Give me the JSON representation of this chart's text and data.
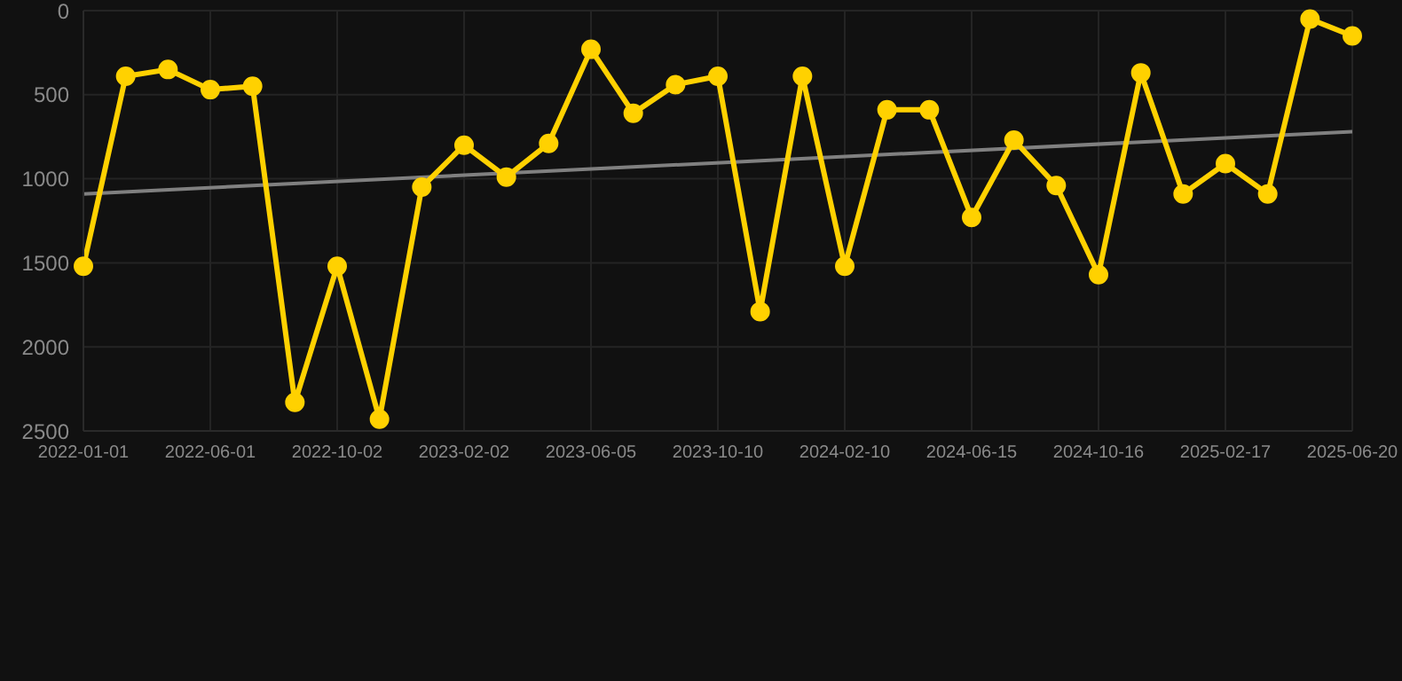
{
  "chart_data": {
    "type": "line",
    "categories": [
      "2022-01-01",
      null,
      null,
      "2022-06-01",
      null,
      null,
      "2022-10-02",
      null,
      null,
      "2023-02-02",
      null,
      null,
      "2023-06-05",
      null,
      null,
      "2023-10-10",
      null,
      null,
      "2024-02-10",
      null,
      null,
      "2024-06-15",
      null,
      null,
      "2024-10-16",
      null,
      null,
      "2025-02-17",
      null,
      null,
      "2025-06-20"
    ],
    "series": [
      {
        "color": "#ffd100",
        "marker": "circle",
        "values": [
          1520,
          390,
          350,
          470,
          450,
          2330,
          1520,
          2430,
          1050,
          800,
          990,
          790,
          230,
          610,
          440,
          390,
          1790,
          390,
          1520,
          590,
          590,
          1230,
          770,
          1040,
          1570,
          370,
          1090,
          910,
          1090,
          50,
          150
        ]
      },
      {
        "type": "line",
        "color": "#808080",
        "marker": "none",
        "values": [
          1090,
          null,
          null,
          null,
          null,
          null,
          null,
          null,
          null,
          null,
          null,
          null,
          null,
          null,
          null,
          null,
          null,
          null,
          null,
          null,
          null,
          null,
          null,
          null,
          null,
          null,
          null,
          null,
          null,
          null,
          720
        ]
      }
    ],
    "ylim": [
      2500,
      0
    ],
    "yticks": [
      0,
      500,
      1000,
      1500,
      2000,
      2500
    ],
    "grid": true,
    "line_style": "solid"
  }
}
